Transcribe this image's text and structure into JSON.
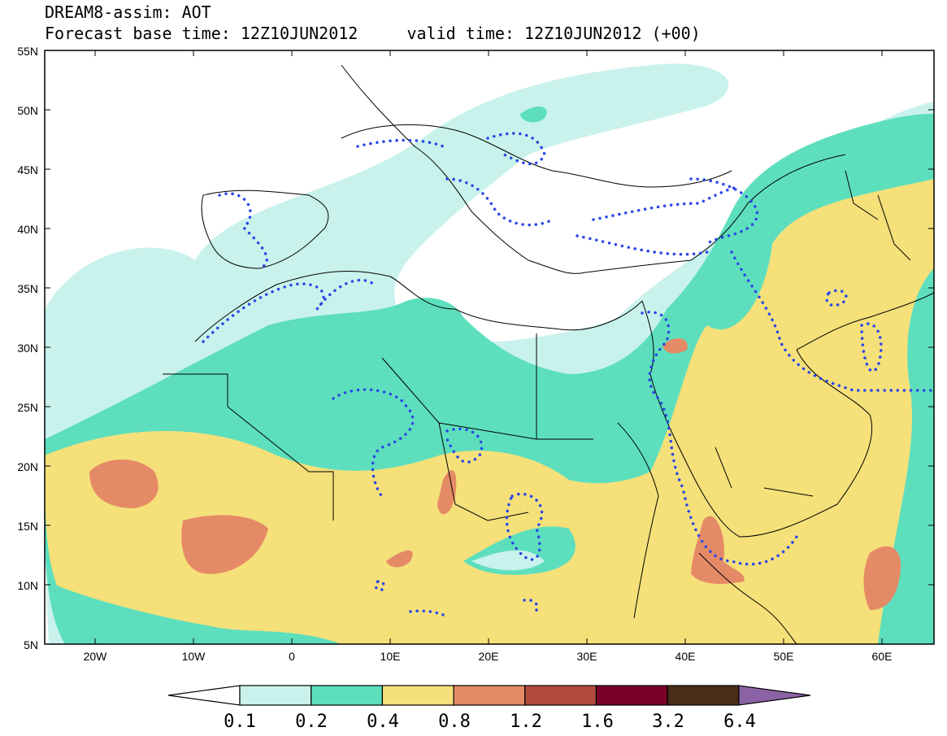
{
  "title": {
    "line1": "DREAM8-assim: AOT",
    "line2": "Forecast base time: 12Z10JUN2012     valid time: 12Z10JUN2012 (+00)"
  },
  "axes": {
    "lat_labels": [
      "55N",
      "50N",
      "45N",
      "40N",
      "35N",
      "30N",
      "25N",
      "20N",
      "15N",
      "10N",
      "5N"
    ],
    "lon_labels": [
      "20W",
      "10W",
      "0",
      "10E",
      "20E",
      "30E",
      "40E",
      "50E",
      "60E"
    ]
  },
  "colorbar": {
    "labels": [
      "0.1",
      "0.2",
      "0.4",
      "0.8",
      "1.2",
      "1.6",
      "3.2",
      "6.4"
    ],
    "colors": [
      "#ffffff",
      "#c9f2ec",
      "#5ddfbd",
      "#f5e07a",
      "#e58a66",
      "#b04b3d",
      "#7a0027",
      "#4a2c18",
      "#8c62a6"
    ]
  }
}
